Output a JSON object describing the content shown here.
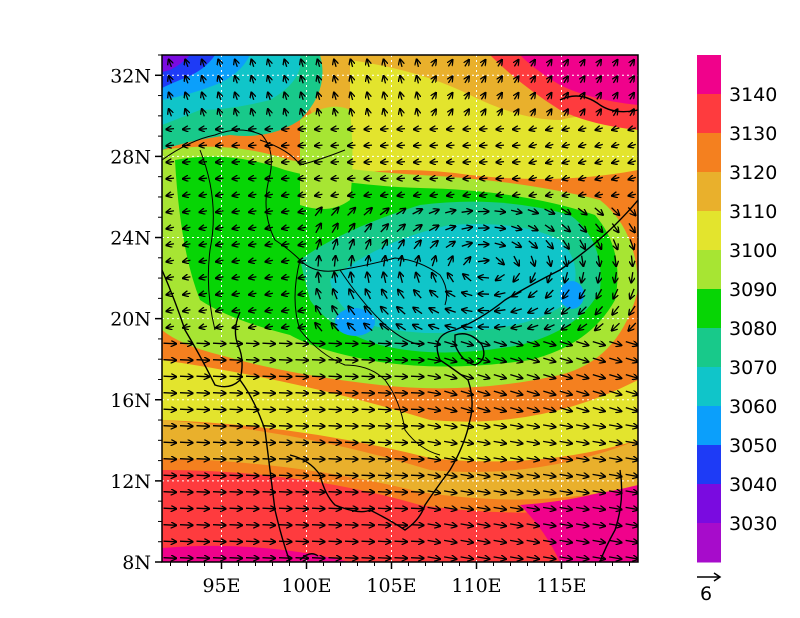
{
  "map": {
    "lat_range": [
      8,
      33
    ],
    "lon_range": [
      91.5,
      119.5
    ],
    "lat_ticks": [
      "8N",
      "12N",
      "16N",
      "20N",
      "24N",
      "28N",
      "32N"
    ],
    "lat_tick_values": [
      8,
      12,
      16,
      20,
      24,
      28,
      32
    ],
    "lon_ticks": [
      "95E",
      "100E",
      "105E",
      "110E",
      "115E"
    ],
    "lon_tick_values": [
      95,
      100,
      105,
      110,
      115
    ],
    "grid": true
  },
  "colorbar": {
    "labels": [
      "3140",
      "3130",
      "3120",
      "3110",
      "3100",
      "3090",
      "3080",
      "3070",
      "3060",
      "3050",
      "3040",
      "3030"
    ],
    "colors": [
      "#f0028b",
      "#fe3b3e",
      "#f4801f",
      "#e9b02c",
      "#e3e42d",
      "#a7e533",
      "#07d505",
      "#18c98a",
      "#10c5c9",
      "#0b9ffb",
      "#1e3bf6",
      "#7a0be0",
      "#a70ccb"
    ]
  },
  "vector_key": {
    "label": "6"
  }
}
